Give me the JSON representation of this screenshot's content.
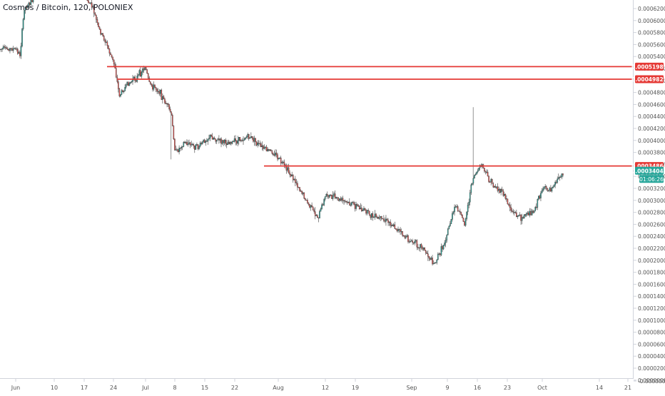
{
  "header": {
    "title": "Cosmos / Bitcoin, 120, POLONIEX"
  },
  "colors": {
    "up": "#26a69a",
    "down": "#ef5350",
    "candle_body": "#3b3b3b",
    "line": "#e53935",
    "axis_text": "#555555",
    "grid_border": "#d0d3db"
  },
  "chart_data": {
    "type": "candlestick",
    "title": "Cosmos / Bitcoin, 120, POLONIEX",
    "xlabel": "",
    "ylabel": "",
    "ylim": [
      -1e-06,
      6.3e-05
    ],
    "y_ticks": [
      "0.00062000",
      "0.00060000",
      "0.00058000",
      "0.00056000",
      "0.00054000",
      "0.00052000",
      "0.00050000",
      "0.00048000",
      "0.00046000",
      "0.00044000",
      "0.00042000",
      "0.00040000",
      "0.00038000",
      "0.00036000",
      "0.00034000",
      "0.00032000",
      "0.00030000",
      "0.00028000",
      "0.00026000",
      "0.00024000",
      "0.00022000",
      "0.00020000",
      "0.00018000",
      "0.00016000",
      "0.00014000",
      "0.00012000",
      "0.00010000",
      "0.00008000",
      "0.00006000",
      "0.00004000",
      "0.00002000",
      "0.00000000",
      "-0.00000000"
    ],
    "x_ticks": [
      "Jun",
      "10",
      "17",
      "24",
      "Jul",
      "8",
      "15",
      "22",
      "Aug",
      "12",
      "19",
      "Sep",
      "9",
      "16",
      "23",
      "Oct",
      "14",
      "21"
    ],
    "horizontal_levels": [
      {
        "value": 0.00051985,
        "label": "0.00051985"
      },
      {
        "value": 0.00049823,
        "label": "0.00049823"
      },
      {
        "value": 0.00034864,
        "label": "0.00034864"
      }
    ],
    "last_price": {
      "value": 0.00034043,
      "label": "0.00034043",
      "countdown": "01:06:26"
    },
    "price_path": [
      {
        "date": "Jun 01",
        "close": 0.00055
      },
      {
        "date": "Jun 02",
        "close": 0.00054
      },
      {
        "date": "Jun 03",
        "close": 0.00062
      },
      {
        "date": "Jun 08",
        "close": 0.00066
      },
      {
        "date": "Jun 15",
        "close": 0.00066
      },
      {
        "date": "Jun 19",
        "close": 0.00062
      },
      {
        "date": "Jun 20",
        "close": 0.00059
      },
      {
        "date": "Jun 22",
        "close": 0.00056
      },
      {
        "date": "Jun 24",
        "close": 0.00052
      },
      {
        "date": "Jun 25",
        "close": 0.00047
      },
      {
        "date": "Jun 27",
        "close": 0.00049
      },
      {
        "date": "Jun 29",
        "close": 0.0005
      },
      {
        "date": "Jul 01",
        "close": 0.00052
      },
      {
        "date": "Jul 02",
        "close": 0.00049
      },
      {
        "date": "Jul 04",
        "close": 0.00048
      },
      {
        "date": "Jul 07",
        "close": 0.00044
      },
      {
        "date": "Jul 08",
        "close": 0.00037
      },
      {
        "date": "Jul 10",
        "close": 0.00039
      },
      {
        "date": "Jul 13",
        "close": 0.00038
      },
      {
        "date": "Jul 16",
        "close": 0.0004
      },
      {
        "date": "Jul 19",
        "close": 0.00039
      },
      {
        "date": "Jul 22",
        "close": 0.00039
      },
      {
        "date": "Jul 25",
        "close": 0.0004
      },
      {
        "date": "Jul 28",
        "close": 0.00038
      },
      {
        "date": "Jul 31",
        "close": 0.00037
      },
      {
        "date": "Aug 02",
        "close": 0.00035
      },
      {
        "date": "Aug 05",
        "close": 0.00032
      },
      {
        "date": "Aug 08",
        "close": 0.00028
      },
      {
        "date": "Aug 10",
        "close": 0.00026
      },
      {
        "date": "Aug 12",
        "close": 0.0003
      },
      {
        "date": "Aug 15",
        "close": 0.00029
      },
      {
        "date": "Aug 19",
        "close": 0.00028
      },
      {
        "date": "Aug 23",
        "close": 0.00026
      },
      {
        "date": "Aug 27",
        "close": 0.00025
      },
      {
        "date": "Aug 31",
        "close": 0.00022
      },
      {
        "date": "Sep 03",
        "close": 0.00021
      },
      {
        "date": "Sep 06",
        "close": 0.00018
      },
      {
        "date": "Sep 08",
        "close": 0.00021
      },
      {
        "date": "Sep 10",
        "close": 0.00026
      },
      {
        "date": "Sep 11",
        "close": 0.00028
      },
      {
        "date": "Sep 13",
        "close": 0.00025
      },
      {
        "date": "Sep 15",
        "close": 0.00033
      },
      {
        "date": "Sep 16",
        "close": 0.00034
      },
      {
        "date": "Sep 17",
        "close": 0.00035
      },
      {
        "date": "Sep 19",
        "close": 0.00032
      },
      {
        "date": "Sep 22",
        "close": 0.0003
      },
      {
        "date": "Sep 24",
        "close": 0.00027
      },
      {
        "date": "Sep 26",
        "close": 0.00026
      },
      {
        "date": "Sep 29",
        "close": 0.00027
      },
      {
        "date": "Oct 01",
        "close": 0.00031
      },
      {
        "date": "Oct 03",
        "close": 0.00031
      },
      {
        "date": "Oct 06",
        "close": 0.00034
      }
    ],
    "spikes": [
      {
        "date": "Jul 07",
        "low": 0.00036
      },
      {
        "date": "Sep 15",
        "high": 0.00045
      }
    ],
    "grid": false,
    "legend": "none"
  }
}
